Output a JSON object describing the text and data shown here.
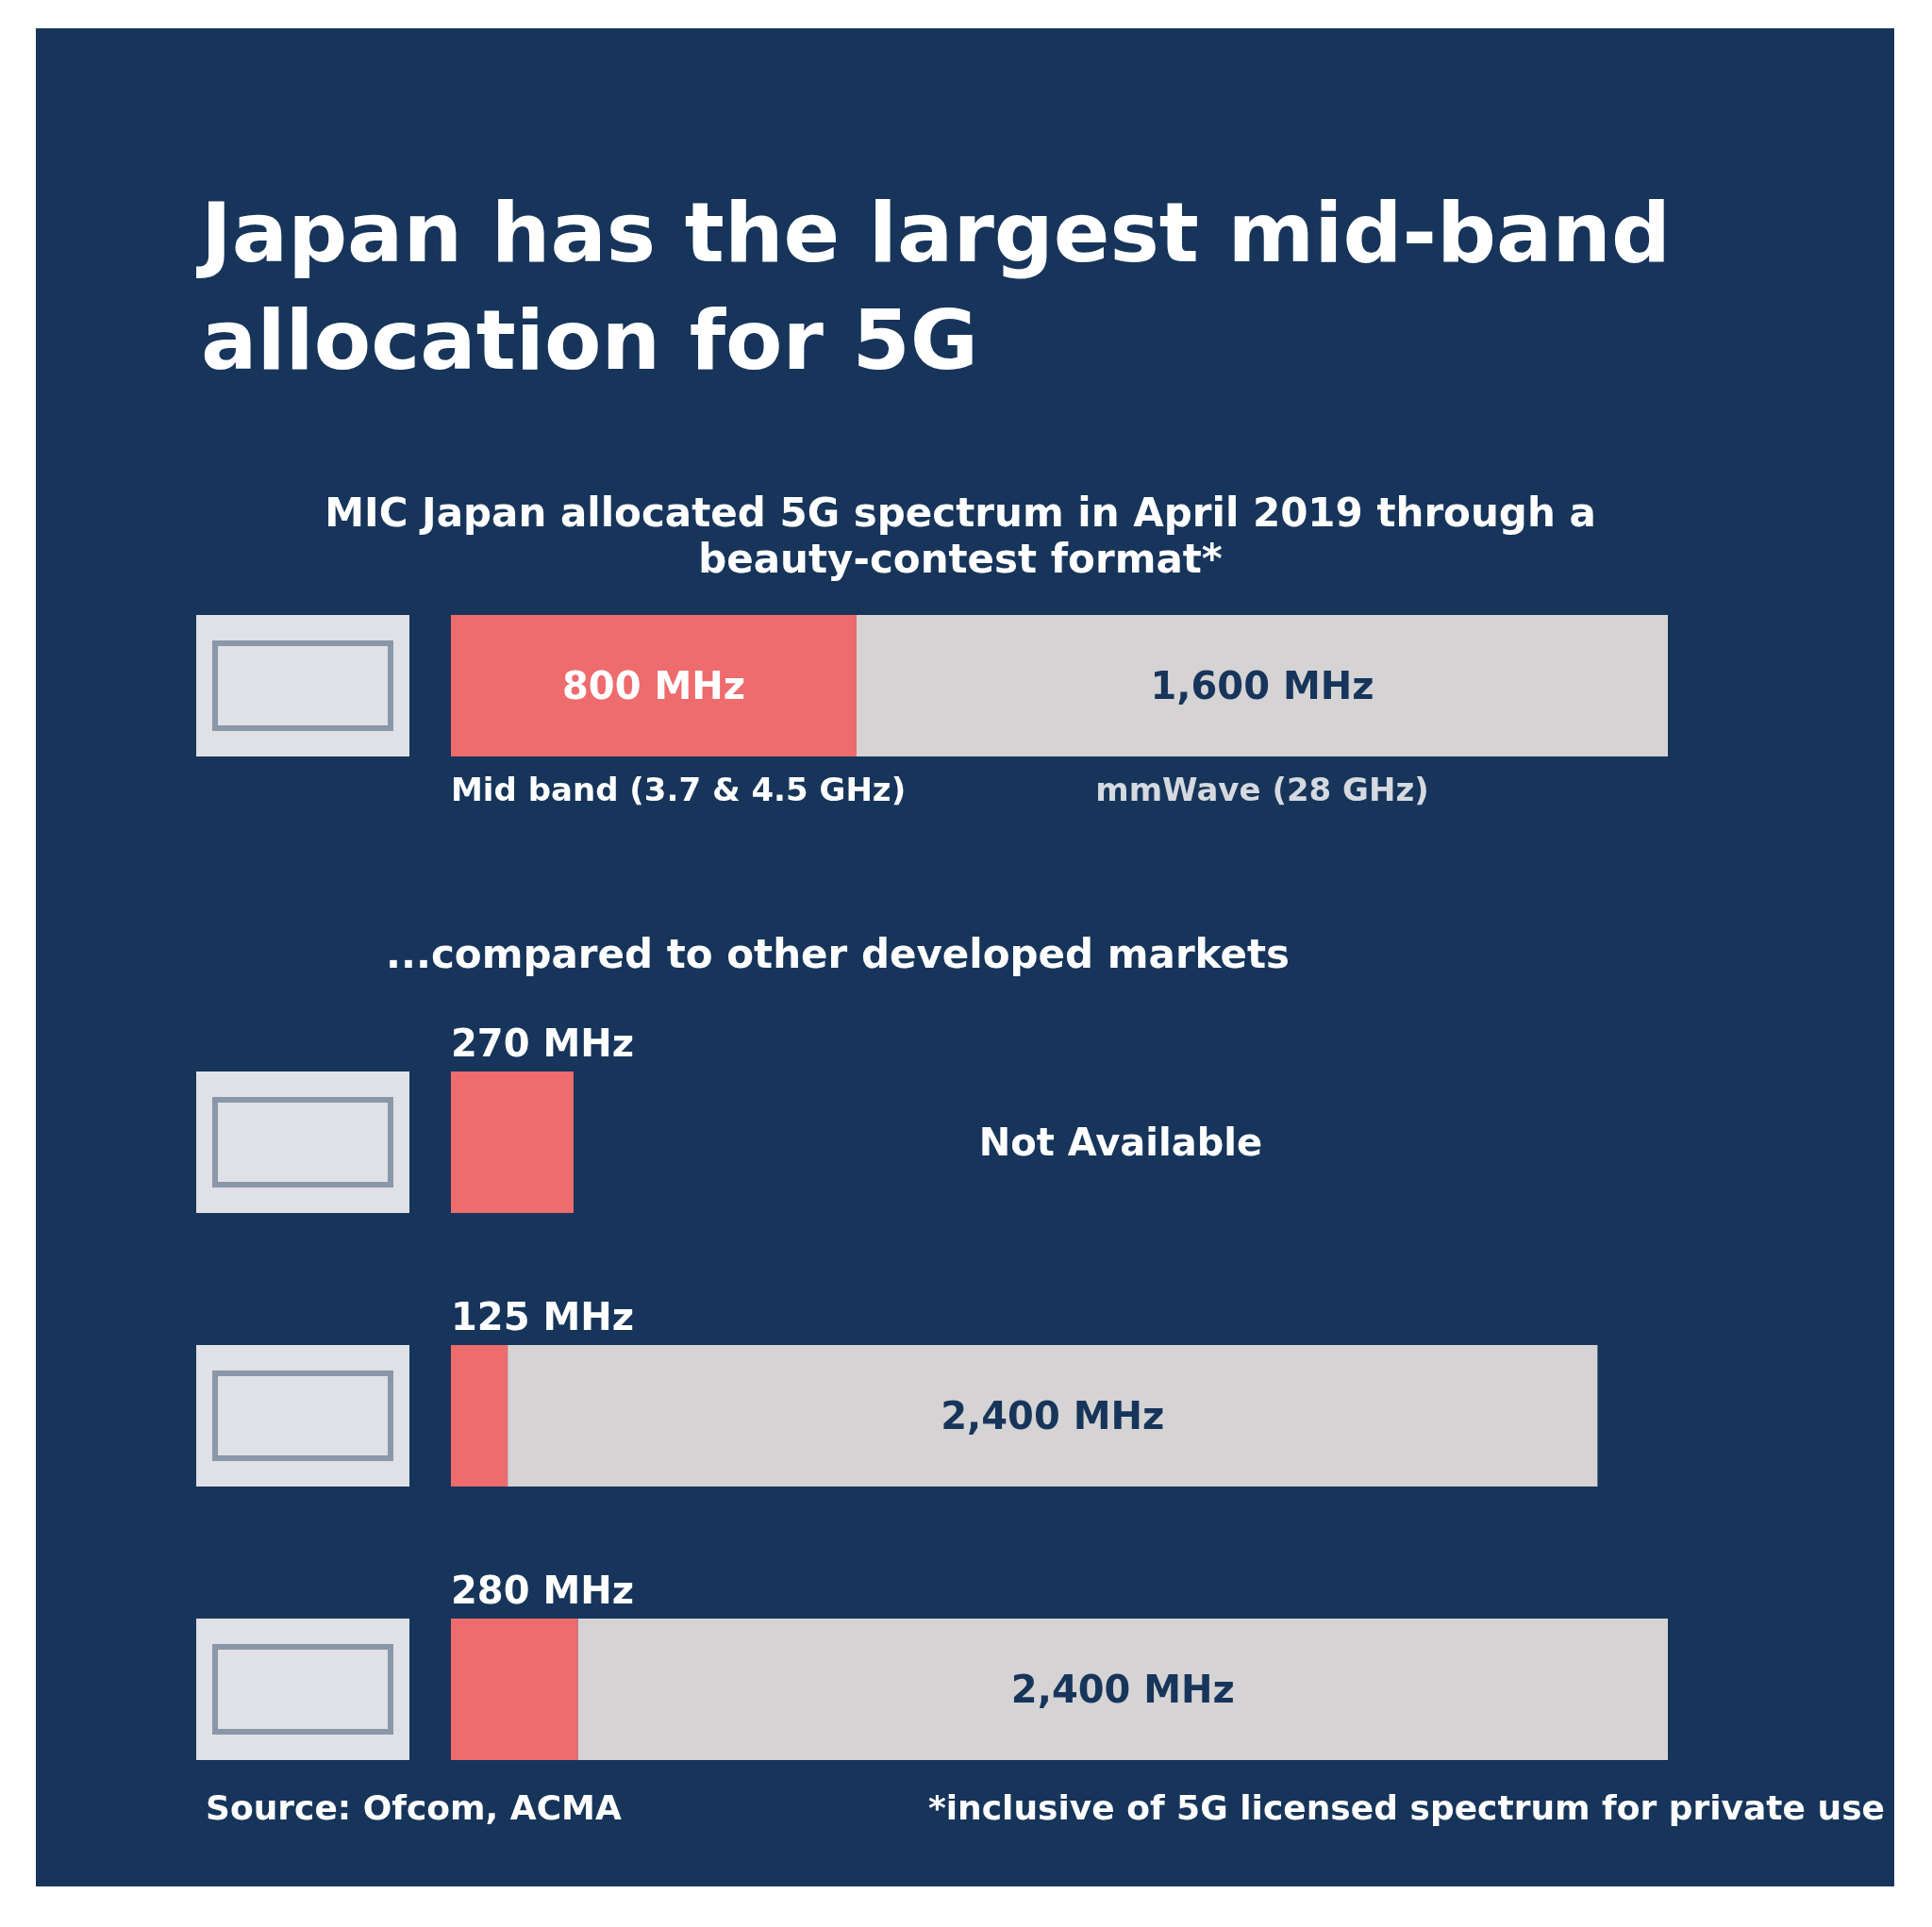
{
  "chart_data": [
    {
      "type": "bar",
      "title": "Japan has the largest mid-band allocation for 5G",
      "subtitle": "MIC Japan allocated 5G spectrum in April 2019 through a beauty-contest format*",
      "orientation": "horizontal",
      "stacked": true,
      "categories": [
        null
      ],
      "tick_labels": false,
      "legend": false,
      "grid": false,
      "series": [
        {
          "name": "Mid band (3.7 & 4.5 GHz)",
          "color": "#ee6b6e",
          "values": [
            800
          ],
          "value_labels": [
            "800 MHz"
          ]
        },
        {
          "name": "mmWave (28 GHz)",
          "color": "#d5d3d4",
          "values": [
            1600
          ],
          "value_labels": [
            "1,600 MHz"
          ]
        }
      ]
    },
    {
      "type": "bar",
      "title": "...compared to other developed markets",
      "orientation": "horizontal",
      "stacked": true,
      "categories": [
        null,
        null,
        null
      ],
      "tick_labels": false,
      "legend": false,
      "grid": false,
      "series": [
        {
          "color": "#ee6b6e",
          "values": [
            270,
            125,
            280
          ],
          "value_labels": [
            "270 MHz",
            "125 MHz",
            "280 MHz"
          ]
        },
        {
          "color": "#d5d3d4",
          "values": [
            null,
            2400,
            2400
          ],
          "value_labels": [
            "Not Available",
            "2,400 MHz",
            "2,400 MHz"
          ]
        }
      ],
      "annotations": [
        "Source: Ofcom, ACMA",
        "*inclusive of 5G licensed spectrum for private use"
      ]
    }
  ]
}
